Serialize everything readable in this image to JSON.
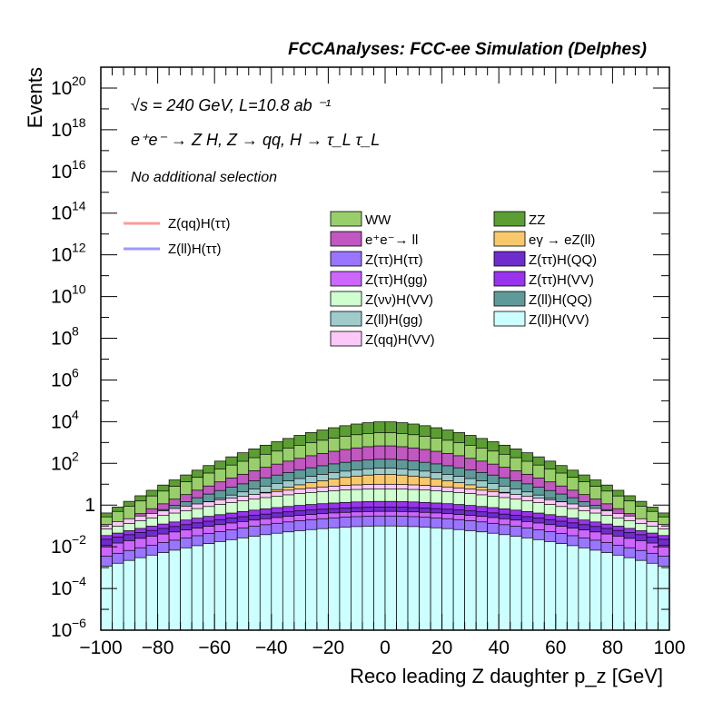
{
  "chart_data": {
    "type": "histogram",
    "title": "FCCAnalyses: FCC-ee Simulation (Delphes)",
    "header_lines": [
      "√s = 240 GeV, L=10.8 ab ⁻¹",
      "e⁺e⁻ → Z H, Z → qq, H → τ_L τ_L",
      "No additional selection"
    ],
    "xlabel": "Reco leading Z daughter p_z [GeV]",
    "ylabel": "Events",
    "xlim": [
      -100,
      100
    ],
    "ylim": [
      1e-06,
      1e+21
    ],
    "log_y": true,
    "x_ticks": [
      "−100",
      "−80",
      "−60",
      "−40",
      "−20",
      "0",
      "20",
      "40",
      "60",
      "80",
      "100"
    ],
    "y_ticks": [
      {
        "v": 1e-06,
        "base": "10",
        "exp": "−6"
      },
      {
        "v": 0.0001,
        "base": "10",
        "exp": "−4"
      },
      {
        "v": 0.01,
        "base": "10",
        "exp": "−2"
      },
      {
        "v": 1,
        "base": "1",
        "exp": ""
      },
      {
        "v": 100.0,
        "base": "10",
        "exp": "2"
      },
      {
        "v": 10000.0,
        "base": "10",
        "exp": "4"
      },
      {
        "v": 1000000.0,
        "base": "10",
        "exp": "6"
      },
      {
        "v": 100000000.0,
        "base": "10",
        "exp": "8"
      },
      {
        "v": 10000000000.0,
        "base": "10",
        "exp": "10"
      },
      {
        "v": 1000000000000.0,
        "base": "10",
        "exp": "12"
      },
      {
        "v": 100000000000000.0,
        "base": "10",
        "exp": "14"
      },
      {
        "v": 1e+16,
        "base": "10",
        "exp": "16"
      },
      {
        "v": 1e+18,
        "base": "10",
        "exp": "18"
      },
      {
        "v": 1e+20,
        "base": "10",
        "exp": "20"
      }
    ],
    "stack_envelopes": [
      {
        "name": "ZZ",
        "color": "#5c9e33",
        "peak": 10000,
        "edge": 0.3,
        "p": 1.6,
        "floor": 1e-07
      },
      {
        "name": "WW",
        "color": "#98cf6a",
        "peak": 3000,
        "edge": 0.2,
        "p": 1.6,
        "floor": 0.2
      },
      {
        "name": "e⁺e⁻→ ll",
        "color": "#c157c0",
        "peak": 700,
        "edge": 0.05,
        "p": 1.6,
        "floor": 1e-07
      },
      {
        "name": "Z(ll)H(QQ)",
        "color": "#5f9a9a",
        "peak": 160,
        "edge": 0.04,
        "p": 1.6,
        "floor": 1e-07
      },
      {
        "name": "Z(ll)H(gg)",
        "color": "#9fcbcb",
        "peak": 60,
        "edge": 0.02,
        "p": 1.6,
        "floor": 1e-07
      },
      {
        "name": "eγ → eZ(ll)",
        "color": "#f8c86a",
        "peak": 30,
        "edge": 0.01,
        "p": 1.6,
        "floor": 1e-07
      },
      {
        "name": "Z(qq)H(VV)",
        "color": "#fbc8f8",
        "peak": 10,
        "edge": 0.1,
        "p": 1.8,
        "floor": 1e-07
      },
      {
        "name": "Z(νν)H(VV)",
        "color": "#cfffcf",
        "peak": 6,
        "edge": 0.06,
        "p": 1.8,
        "floor": 1e-07
      },
      {
        "name": "Z(ττ)H(VV)",
        "color": "#9933ee",
        "peak": 1.5,
        "edge": 0.03,
        "p": 1.8,
        "floor": 1e-07
      },
      {
        "name": "Z(ττ)H(QQ)",
        "color": "#6f2ccc",
        "peak": 0.8,
        "edge": 0.02,
        "p": 1.8,
        "floor": 1e-07
      },
      {
        "name": "Z(ττ)H(gg)",
        "color": "#cc66ff",
        "peak": 0.5,
        "edge": 0.01,
        "p": 1.8,
        "floor": 1e-07
      },
      {
        "name": "Z(ττ)H(ττ)",
        "color": "#9a75ff",
        "peak": 0.3,
        "edge": 0.003,
        "p": 1.8,
        "floor": 1e-07
      },
      {
        "name": "Z(ll)H(VV)",
        "color": "#ccffff",
        "peak": 0.1,
        "edge": 0.001,
        "p": 1.8,
        "floor": 1e-07
      }
    ],
    "signal_lines": [
      {
        "name": "Z(qq)H(ττ)",
        "color": "#ff9999",
        "peak": 100,
        "edge": 10,
        "p": 1.6,
        "range": [
          -74,
          76
        ]
      },
      {
        "name": "Z(ll)H(ττ)",
        "color": "#9999ff",
        "peak": 2.5,
        "edge": 0.4,
        "p": 1.6,
        "range": [
          -94,
          92
        ]
      }
    ],
    "legend": {
      "signals": [
        {
          "name": "Z(qq)H(ττ)",
          "color": "#ff9999"
        },
        {
          "name": "Z(ll)H(ττ)",
          "color": "#9999ff"
        }
      ],
      "col1": [
        {
          "name": "WW",
          "color": "#98cf6a"
        },
        {
          "name": "e⁺e⁻→ ll",
          "color": "#c157c0"
        },
        {
          "name": "Z(ττ)H(ττ)",
          "color": "#9a75ff"
        },
        {
          "name": "Z(ττ)H(gg)",
          "color": "#cc66ff"
        },
        {
          "name": "Z(νν)H(VV)",
          "color": "#cfffcf"
        },
        {
          "name": "Z(ll)H(gg)",
          "color": "#9fcbcb"
        },
        {
          "name": "Z(qq)H(VV)",
          "color": "#fbc8f8"
        }
      ],
      "col2": [
        {
          "name": "ZZ",
          "color": "#5c9e33"
        },
        {
          "name": "eγ → eZ(ll)",
          "color": "#f8c86a"
        },
        {
          "name": "Z(ττ)H(QQ)",
          "color": "#6f2ccc"
        },
        {
          "name": "Z(ττ)H(VV)",
          "color": "#9933ee"
        },
        {
          "name": "Z(ll)H(QQ)",
          "color": "#5f9a9a"
        },
        {
          "name": "Z(ll)H(VV)",
          "color": "#ccffff"
        }
      ]
    }
  }
}
